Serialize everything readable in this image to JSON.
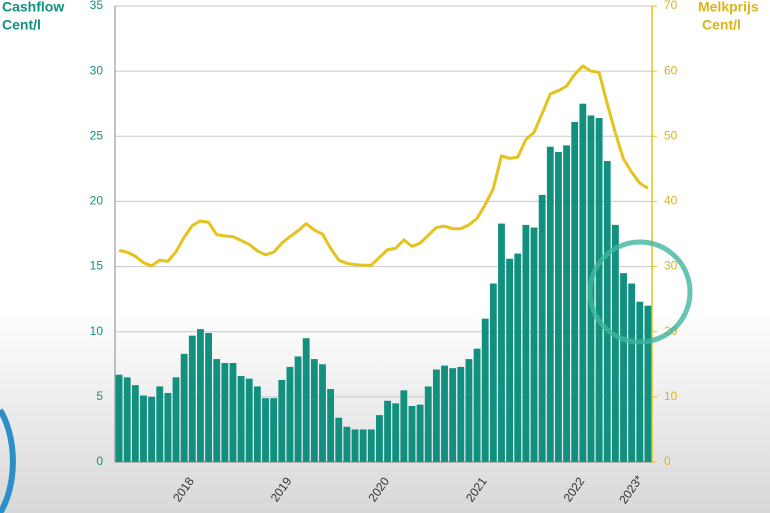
{
  "chart_data": {
    "type": "bar_line",
    "y_label": [
      "Cashflow",
      "Cent/l"
    ],
    "y2_label": [
      "Melkprijs",
      "Cent/l"
    ],
    "categories": [
      null,
      null,
      null,
      null,
      null,
      null,
      null,
      null,
      "2018",
      null,
      null,
      null,
      null,
      null,
      null,
      null,
      null,
      null,
      null,
      null,
      "2019",
      null,
      null,
      null,
      null,
      null,
      null,
      null,
      null,
      null,
      null,
      null,
      "2020",
      null,
      null,
      null,
      null,
      null,
      null,
      null,
      null,
      null,
      null,
      null,
      "2021",
      null,
      null,
      null,
      null,
      null,
      null,
      null,
      null,
      null,
      null,
      null,
      "2022",
      null,
      null,
      null,
      null,
      null,
      null,
      "2023*",
      null,
      null
    ],
    "series": [
      {
        "name": "Cashflow",
        "color": "#12907f",
        "axis": "y",
        "values": [
          6.7,
          6.5,
          5.9,
          5.1,
          5.0,
          5.8,
          5.3,
          6.5,
          8.3,
          9.7,
          10.2,
          9.9,
          7.9,
          7.6,
          7.6,
          6.6,
          6.4,
          5.8,
          4.9,
          4.9,
          6.3,
          7.3,
          8.1,
          9.5,
          7.9,
          7.5,
          5.6,
          3.4,
          2.7,
          2.5,
          2.5,
          2.5,
          3.6,
          4.7,
          4.5,
          5.5,
          4.3,
          4.4,
          5.8,
          7.1,
          7.4,
          7.2,
          7.3,
          7.9,
          8.7,
          11.0,
          13.7,
          18.3,
          15.6,
          16.0,
          18.2,
          18.0,
          20.5,
          24.2,
          23.8,
          24.3,
          26.1,
          27.5,
          26.6,
          26.4,
          23.1,
          18.2,
          14.5,
          13.7,
          12.3,
          12.0
        ]
      },
      {
        "name": "Melkprijs",
        "color": "#e6c21d",
        "axis": "y2",
        "values": [
          32.5,
          32.2,
          31.6,
          30.6,
          30.1,
          31.0,
          30.8,
          32.3,
          34.5,
          36.3,
          37.0,
          36.8,
          34.9,
          34.7,
          34.6,
          34.0,
          33.4,
          32.4,
          31.8,
          32.2,
          33.6,
          34.6,
          35.5,
          36.6,
          35.6,
          35.0,
          32.8,
          31.0,
          30.5,
          30.3,
          30.2,
          30.2,
          31.4,
          32.6,
          32.8,
          34.1,
          33.1,
          33.6,
          34.8,
          36.0,
          36.2,
          35.8,
          35.8,
          36.4,
          37.4,
          39.5,
          42.0,
          47.0,
          46.6,
          46.8,
          49.5,
          50.6,
          53.5,
          56.5,
          57.0,
          57.7,
          59.5,
          60.8,
          60.0,
          59.8,
          55.0,
          50.5,
          46.5,
          44.5,
          42.8,
          42.0
        ]
      }
    ],
    "ylim": [
      0,
      35
    ],
    "yticks": [
      0,
      5,
      10,
      15,
      20,
      25,
      30,
      35
    ],
    "y2lim": [
      0,
      70
    ],
    "y2ticks": [
      0,
      10,
      20,
      30,
      40,
      50,
      60,
      70
    ],
    "grid": true
  }
}
